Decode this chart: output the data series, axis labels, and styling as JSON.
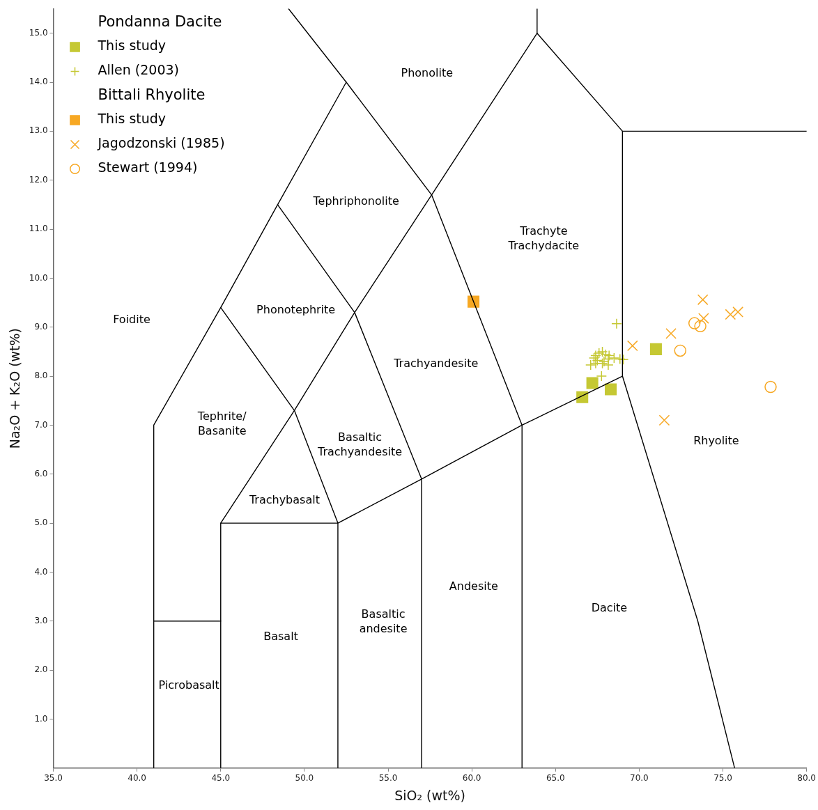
{
  "chart_data": {
    "type": "scatter",
    "xlabel": "SiO₂ (wt%)",
    "ylabel": "Na₂O + K₂O (wt%)",
    "xlim": [
      35,
      80
    ],
    "ylim": [
      0,
      15.5
    ],
    "xticks": [
      {
        "value": 35,
        "label": "35.0"
      },
      {
        "value": 40,
        "label": "40.0"
      },
      {
        "value": 45,
        "label": "45.0"
      },
      {
        "value": 50,
        "label": "50.0"
      },
      {
        "value": 55,
        "label": "55.0"
      },
      {
        "value": 60,
        "label": "60.0"
      },
      {
        "value": 65,
        "label": "65.0"
      },
      {
        "value": 70,
        "label": "70.0"
      },
      {
        "value": 75,
        "label": "75.0"
      },
      {
        "value": 80,
        "label": "80.0"
      }
    ],
    "yticks": [
      {
        "value": 1,
        "label": "1.0"
      },
      {
        "value": 2,
        "label": "2.0"
      },
      {
        "value": 3,
        "label": "3.0"
      },
      {
        "value": 4,
        "label": "4.0"
      },
      {
        "value": 5,
        "label": "5.0"
      },
      {
        "value": 6,
        "label": "6.0"
      },
      {
        "value": 7,
        "label": "7.0"
      },
      {
        "value": 8,
        "label": "8.0"
      },
      {
        "value": 9,
        "label": "9.0"
      },
      {
        "value": 10,
        "label": "10.0"
      },
      {
        "value": 11,
        "label": "11.0"
      },
      {
        "value": 12,
        "label": "12.0"
      },
      {
        "value": 13,
        "label": "13.0"
      },
      {
        "value": 14,
        "label": "14.0"
      },
      {
        "value": 15,
        "label": "15.0"
      }
    ],
    "grid": false,
    "legend": "top left",
    "marker": "none",
    "series": [
      {
        "type": "line",
        "color": "#000000",
        "x": [
          41,
          41,
          45,
          48.4,
          52.5,
          49.05
        ],
        "values": [
          0,
          7,
          9.4,
          11.5,
          14,
          15.5
        ]
      },
      {
        "type": "line",
        "color": "#000000",
        "x": [
          52.5,
          57.6,
          63,
          63
        ],
        "values": [
          14,
          11.7,
          7,
          0
        ]
      },
      {
        "type": "line",
        "color": "#000000",
        "x": [
          63.9,
          63.9
        ],
        "values": [
          15,
          15.5
        ]
      },
      {
        "type": "line",
        "color": "#000000",
        "x": [
          69,
          69,
          73.5,
          75.7
        ],
        "values": [
          13,
          8,
          3,
          0
        ]
      },
      {
        "type": "line",
        "color": "#000000",
        "x": [
          41,
          45
        ],
        "values": [
          3,
          3
        ]
      },
      {
        "type": "line",
        "color": "#000000",
        "x": [
          45,
          45,
          52,
          52
        ],
        "values": [
          0,
          5,
          5,
          0
        ]
      },
      {
        "type": "line",
        "color": "#000000",
        "x": [
          45,
          49.4,
          52,
          57,
          63,
          69
        ],
        "values": [
          9.4,
          7.3,
          5,
          5.9,
          7,
          8
        ]
      },
      {
        "type": "line",
        "color": "#000000",
        "x": [
          45,
          49.4,
          53,
          57.6,
          63.9,
          69,
          80
        ],
        "values": [
          5,
          7.3,
          9.3,
          11.7,
          15,
          13,
          13
        ]
      },
      {
        "type": "line",
        "color": "#000000",
        "x": [
          48.4,
          53,
          57,
          57
        ],
        "values": [
          11.5,
          9.3,
          5.9,
          0
        ]
      },
      {
        "name": "This study",
        "color": "#c5c833",
        "marker": "square",
        "x": [
          66.6,
          67.2,
          68.3,
          71.0
        ],
        "values": [
          7.57,
          7.86,
          7.73,
          8.55
        ]
      },
      {
        "name": "Allen (2003)",
        "color": "#c5c833",
        "marker": "cross",
        "x": [
          68.65,
          67.4,
          67.6,
          67.8,
          68.0,
          68.2,
          67.3,
          67.5,
          67.9,
          68.15,
          68.5,
          68.85,
          69.05,
          67.1,
          67.4,
          67.8,
          68.15,
          67.75
        ],
        "values": [
          9.07,
          8.42,
          8.47,
          8.5,
          8.44,
          8.42,
          8.37,
          8.32,
          8.3,
          8.35,
          8.37,
          8.35,
          8.34,
          8.23,
          8.26,
          8.26,
          8.23,
          8.0
        ]
      },
      {
        "name": "This study",
        "color": "#f7a823",
        "marker": "square",
        "x": [
          60.1
        ],
        "values": [
          9.52
        ]
      },
      {
        "name": "Jagodzonski (1985)",
        "color": "#f7a823",
        "marker": "x",
        "x": [
          69.6,
          71.9,
          73.8,
          73.85,
          75.45,
          75.9,
          71.5
        ],
        "values": [
          8.62,
          8.87,
          9.56,
          9.18,
          9.26,
          9.31,
          7.1
        ]
      },
      {
        "name": "Stewart (1994)",
        "color": "#f7a823",
        "marker": "circle",
        "x": [
          73.3,
          73.65,
          72.45,
          77.85
        ],
        "values": [
          9.08,
          9.02,
          8.52,
          7.78
        ]
      }
    ],
    "annotations": [
      "Pondanna Dacite",
      "Bittali Rhyolite",
      "Phonolite",
      "Tephriphonolite",
      "Trachyte\nTrachydacite",
      "Foidite",
      "Phonotephrite",
      "Trachyandesite",
      "Tephrite/\nBasanite",
      "Basaltic\nTrachyandesite",
      "Rhyolite",
      "Trachybasalt",
      "Andesite",
      "Dacite",
      "Basaltic\nandesite",
      "Basalt",
      "Picrobasalt"
    ]
  }
}
